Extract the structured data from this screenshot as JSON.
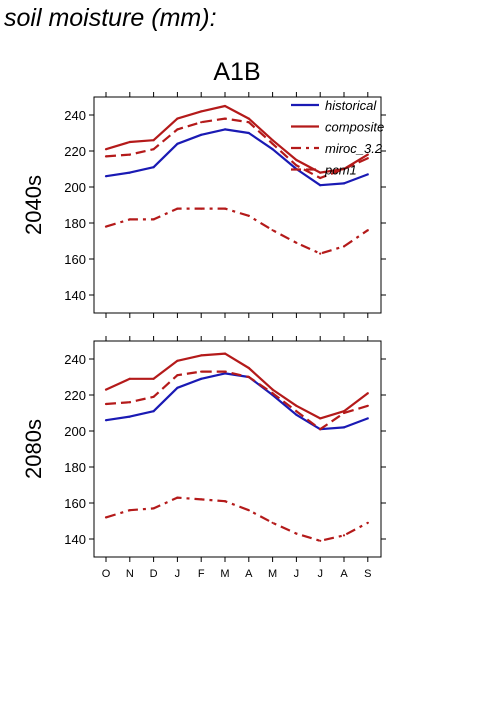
{
  "figure_title": "soil moisture (mm):",
  "chart_data": {
    "type": "line",
    "title": "A1B",
    "categories": [
      "O",
      "N",
      "D",
      "J",
      "F",
      "M",
      "A",
      "M",
      "J",
      "J",
      "A",
      "S"
    ],
    "ylim": [
      130,
      250
    ],
    "yticks": [
      140,
      160,
      180,
      200,
      220,
      240
    ],
    "legend": {
      "placement": "top-right",
      "entries": [
        {
          "label": "historical",
          "color": "#1a1ab4",
          "dash": "solid"
        },
        {
          "label": "composite",
          "color": "#b41a1a",
          "dash": "solid"
        },
        {
          "label": "miroc_3.2",
          "color": "#b41a1a",
          "dash": "dashdot"
        },
        {
          "label": "pcm1",
          "color": "#b41a1a",
          "dash": "dashed"
        }
      ]
    },
    "panels": [
      {
        "row_label": "2040s",
        "series": [
          {
            "name": "historical",
            "values": [
              206,
              208,
              211,
              224,
              229,
              232,
              230,
              221,
              210,
              201,
              202,
              207
            ]
          },
          {
            "name": "composite",
            "values": [
              221,
              225,
              226,
              238,
              242,
              245,
              238,
              226,
              215,
              208,
              210,
              218
            ]
          },
          {
            "name": "miroc_3.2",
            "values": [
              178,
              182,
              182,
              188,
              188,
              188,
              184,
              176,
              169,
              163,
              167,
              176
            ]
          },
          {
            "name": "pcm1",
            "values": [
              217,
              218,
              221,
              232,
              236,
              238,
              236,
              224,
              212,
              205,
              210,
              216
            ]
          }
        ]
      },
      {
        "row_label": "2080s",
        "series": [
          {
            "name": "historical",
            "values": [
              206,
              208,
              211,
              224,
              229,
              232,
              230,
              220,
              209,
              201,
              202,
              207
            ]
          },
          {
            "name": "composite",
            "values": [
              223,
              229,
              229,
              239,
              242,
              243,
              235,
              223,
              214,
              207,
              211,
              221
            ]
          },
          {
            "name": "miroc_3.2",
            "values": [
              152,
              156,
              157,
              163,
              162,
              161,
              156,
              149,
              143,
              139,
              142,
              149
            ]
          },
          {
            "name": "pcm1",
            "values": [
              215,
              216,
              219,
              231,
              233,
              233,
              230,
              221,
              211,
              201,
              210,
              214
            ]
          }
        ]
      }
    ]
  }
}
